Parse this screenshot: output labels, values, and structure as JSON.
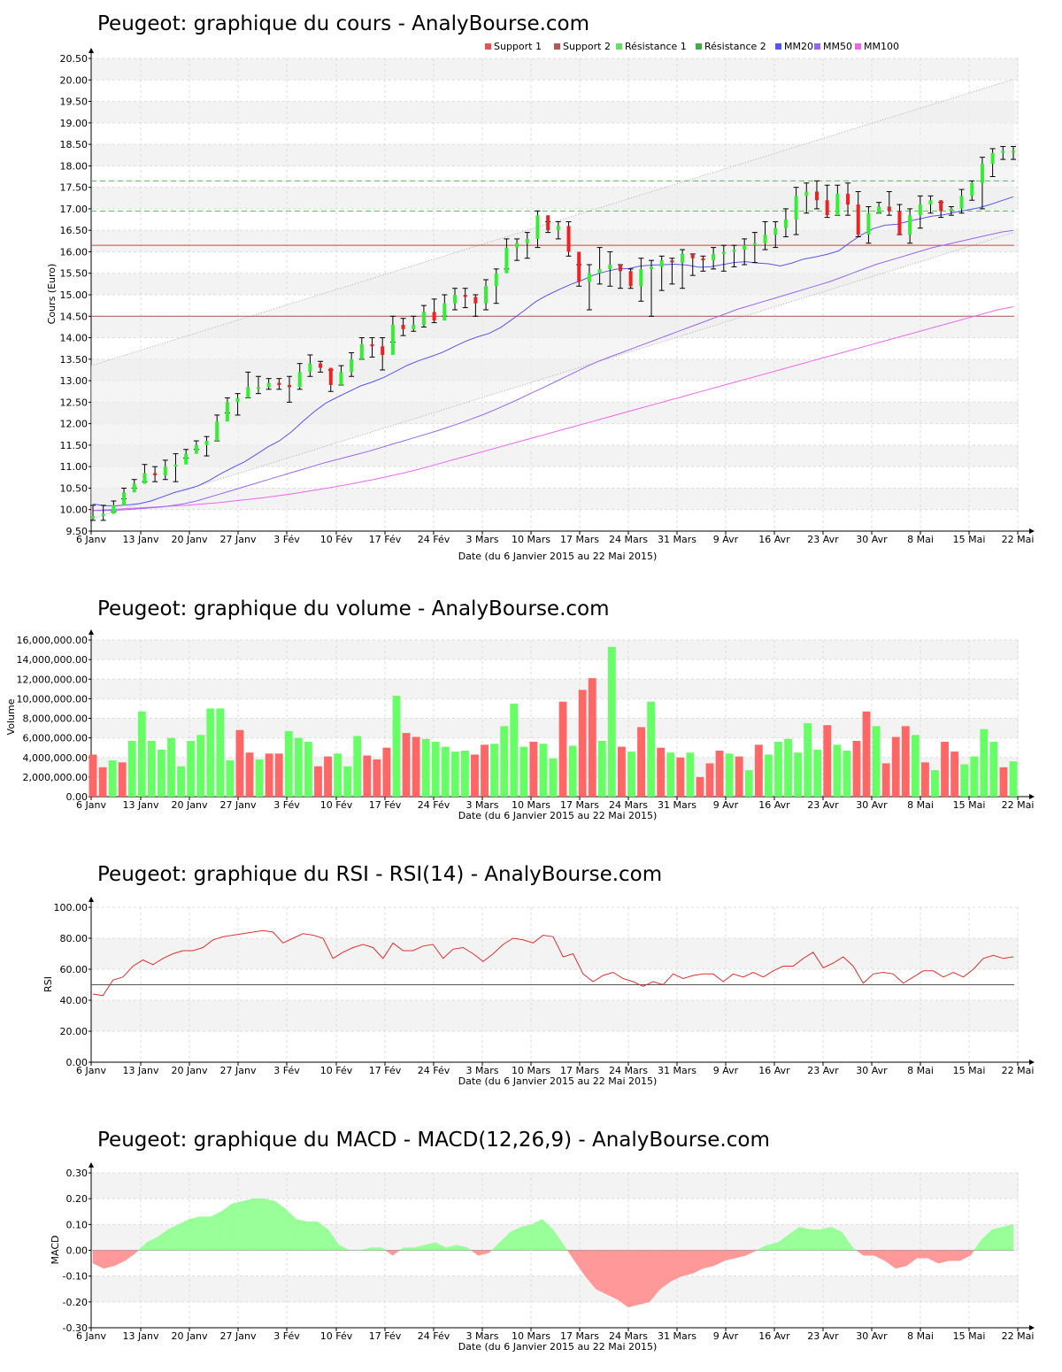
{
  "chart_data": [
    {
      "type": "candlestick",
      "title": "Peugeot: graphique du cours - AnalyBourse.com",
      "xlabel": "Date (du 6 Janvier 2015 au 22 Mai 2015)",
      "ylabel": "Cours (Euro)",
      "ylim": [
        9.5,
        20.5
      ],
      "yticks": [
        "9.50",
        "10.00",
        "10.50",
        "11.00",
        "11.50",
        "12.00",
        "12.50",
        "13.00",
        "13.50",
        "14.00",
        "14.50",
        "15.00",
        "15.50",
        "16.00",
        "16.50",
        "17.00",
        "17.50",
        "18.00",
        "18.50",
        "19.00",
        "19.50",
        "20.00",
        "20.50"
      ],
      "xticks": [
        "6 Janv",
        "13 Janv",
        "20 Janv",
        "27 Janv",
        "3 Fév",
        "10 Fév",
        "17 Fév",
        "24 Fév",
        "3 Mars",
        "10 Mars",
        "17 Mars",
        "24 Mars",
        "31 Mars",
        "9 Avr",
        "16 Avr",
        "23 Avr",
        "30 Avr",
        "8 Mai",
        "15 Mai",
        "22 Mai"
      ],
      "legend": [
        {
          "name": "Support 1",
          "color": "#e05555"
        },
        {
          "name": "Support 2",
          "color": "#b05a5a"
        },
        {
          "name": "Résistance 1",
          "color": "#66dd66"
        },
        {
          "name": "Résistance 2",
          "color": "#44aa44"
        },
        {
          "name": "MM20",
          "color": "#5555ee"
        },
        {
          "name": "MM50",
          "color": "#9966ee"
        },
        {
          "name": "MM100",
          "color": "#ee66ee"
        }
      ],
      "levels": {
        "support1": 16.15,
        "support2": 14.5,
        "resistance1": 16.95,
        "resistance2": 17.65
      },
      "close": [
        9.85,
        9.9,
        10.1,
        10.4,
        10.6,
        10.85,
        10.8,
        11.0,
        11.05,
        11.3,
        11.5,
        11.6,
        12.05,
        12.5,
        12.6,
        12.85,
        12.85,
        12.95,
        12.9,
        12.85,
        13.2,
        13.4,
        13.3,
        12.9,
        13.2,
        13.5,
        13.85,
        13.8,
        13.6,
        14.3,
        14.2,
        14.3,
        14.6,
        14.4,
        14.8,
        15.0,
        14.95,
        14.8,
        15.2,
        15.5,
        16.1,
        16.2,
        16.3,
        16.85,
        16.5,
        16.6,
        16.0,
        15.3,
        15.5,
        15.6,
        15.7,
        15.55,
        15.2,
        15.6,
        15.65,
        15.8,
        15.75,
        15.95,
        15.85,
        15.8,
        15.95,
        16.0,
        16.05,
        16.15,
        16.2,
        16.4,
        16.55,
        16.75,
        17.3,
        17.4,
        17.2,
        16.85,
        17.35,
        17.1,
        16.4,
        16.9,
        17.05,
        16.95,
        16.4,
        16.85,
        17.1,
        17.2,
        16.95,
        17.0,
        17.3,
        17.6,
        18.05,
        18.3,
        18.35,
        18.35
      ],
      "high": [
        10.1,
        10.1,
        10.2,
        10.5,
        10.7,
        11.05,
        11.0,
        11.15,
        11.3,
        11.4,
        11.6,
        11.7,
        12.2,
        12.6,
        12.7,
        13.2,
        13.1,
        13.05,
        13.05,
        13.1,
        13.4,
        13.6,
        13.45,
        13.25,
        13.35,
        13.65,
        14.0,
        14.0,
        14.0,
        14.5,
        14.45,
        14.5,
        14.75,
        14.9,
        15.0,
        15.15,
        15.15,
        15.0,
        15.35,
        15.6,
        16.3,
        16.3,
        16.45,
        16.95,
        16.7,
        16.7,
        16.7,
        15.7,
        15.7,
        16.1,
        16.0,
        15.7,
        15.6,
        15.85,
        15.8,
        15.9,
        15.85,
        16.05,
        15.95,
        15.9,
        16.1,
        16.15,
        16.15,
        16.3,
        16.45,
        16.7,
        16.7,
        17.0,
        17.5,
        17.6,
        17.65,
        17.55,
        17.55,
        17.6,
        17.4,
        17.05,
        17.15,
        17.4,
        17.1,
        17.0,
        17.3,
        17.3,
        17.15,
        17.05,
        17.45,
        17.65,
        18.2,
        18.4,
        18.45,
        18.45
      ],
      "low": [
        9.75,
        9.75,
        9.95,
        10.25,
        10.5,
        10.65,
        10.65,
        10.7,
        10.65,
        11.2,
        11.4,
        11.25,
        11.6,
        12.25,
        12.2,
        12.6,
        12.7,
        12.8,
        12.8,
        12.5,
        12.8,
        13.1,
        13.2,
        12.75,
        12.9,
        13.1,
        13.5,
        13.55,
        13.25,
        13.9,
        14.05,
        14.15,
        14.25,
        14.35,
        14.5,
        14.65,
        14.7,
        14.5,
        14.65,
        14.8,
        15.6,
        15.8,
        15.85,
        16.1,
        16.45,
        16.3,
        15.9,
        15.2,
        14.65,
        15.25,
        15.2,
        15.15,
        15.15,
        14.85,
        14.5,
        15.1,
        15.25,
        15.15,
        15.45,
        15.55,
        15.6,
        15.55,
        15.65,
        15.7,
        15.75,
        16.05,
        16.1,
        16.35,
        16.4,
        16.9,
        17.0,
        16.8,
        16.85,
        16.85,
        16.35,
        16.2,
        16.9,
        16.85,
        16.4,
        16.2,
        16.55,
        16.9,
        16.8,
        16.85,
        16.9,
        17.2,
        17.0,
        17.75,
        18.15,
        18.15
      ],
      "ma20": [
        10.13,
        10.09,
        10.09,
        10.11,
        10.14,
        10.2,
        10.3,
        10.4,
        10.47,
        10.55,
        10.68,
        10.84,
        10.98,
        11.11,
        11.28,
        11.46,
        11.6,
        11.8,
        12.05,
        12.28,
        12.48,
        12.62,
        12.75,
        12.88,
        12.97,
        13.08,
        13.22,
        13.36,
        13.47,
        13.56,
        13.66,
        13.79,
        13.92,
        14.02,
        14.1,
        14.24,
        14.43,
        14.63,
        14.84,
        14.99,
        15.12,
        15.24,
        15.34,
        15.46,
        15.54,
        15.6,
        15.61,
        15.67,
        15.69,
        15.7,
        15.71,
        15.69,
        15.64,
        15.65,
        15.7,
        15.75,
        15.77,
        15.74,
        15.72,
        15.67,
        15.74,
        15.83,
        15.88,
        15.94,
        16.02,
        16.22,
        16.4,
        16.54,
        16.62,
        16.64,
        16.71,
        16.77,
        16.83,
        16.86,
        16.92,
        16.97,
        17.02,
        17.1,
        17.19,
        17.28
      ],
      "ma50": [
        9.98,
        9.98,
        9.99,
        10.0,
        10.02,
        10.04,
        10.06,
        10.1,
        10.14,
        10.2,
        10.28,
        10.36,
        10.44,
        10.52,
        10.6,
        10.68,
        10.76,
        10.84,
        10.92,
        11.0,
        11.08,
        11.15,
        11.22,
        11.29,
        11.36,
        11.44,
        11.52,
        11.6,
        11.68,
        11.76,
        11.84,
        11.93,
        12.02,
        12.12,
        12.22,
        12.33,
        12.45,
        12.57,
        12.7,
        12.82,
        12.95,
        13.08,
        13.21,
        13.34,
        13.46,
        13.56,
        13.66,
        13.76,
        13.86,
        13.96,
        14.06,
        14.16,
        14.26,
        14.36,
        14.46,
        14.56,
        14.66,
        14.74,
        14.82,
        14.9,
        14.98,
        15.06,
        15.14,
        15.22,
        15.3,
        15.4,
        15.5,
        15.6,
        15.7,
        15.78,
        15.86,
        15.94,
        16.02,
        16.1,
        16.16,
        16.22,
        16.28,
        16.34,
        16.4,
        16.46,
        16.5
      ],
      "ma100": [
        9.98,
        10.0,
        10.02,
        10.04,
        10.06,
        10.08,
        10.1,
        10.13,
        10.16,
        10.2,
        10.24,
        10.28,
        10.33,
        10.38,
        10.44,
        10.5,
        10.56,
        10.63,
        10.7,
        10.78,
        10.86,
        10.95,
        11.05,
        11.15,
        11.25,
        11.35,
        11.45,
        11.55,
        11.65,
        11.75,
        11.85,
        11.95,
        12.05,
        12.15,
        12.25,
        12.35,
        12.45,
        12.55,
        12.65,
        12.75,
        12.85,
        12.95,
        13.05,
        13.15,
        13.25,
        13.35,
        13.45,
        13.55,
        13.65,
        13.75,
        13.85,
        13.95,
        14.05,
        14.15,
        14.25,
        14.35,
        14.45,
        14.55,
        14.65,
        14.72
      ]
    },
    {
      "type": "bar",
      "title": "Peugeot: graphique du volume - AnalyBourse.com",
      "xlabel": "Date (du 6 Janvier 2015 au 22 Mai 2015)",
      "ylabel": "Volume",
      "ylim": [
        0,
        16000000
      ],
      "yticks": [
        "0.00",
        "2,000,000.00",
        "4,000,000.00",
        "6,000,000.00",
        "8,000,000.00",
        "10,000,000.00",
        "12,000,000.00",
        "14,000,000.00",
        "16,000,000.00"
      ],
      "xticks": [
        "6 Janv",
        "13 Janv",
        "20 Janv",
        "27 Janv",
        "3 Fév",
        "10 Fév",
        "17 Fév",
        "24 Fév",
        "3 Mars",
        "10 Mars",
        "17 Mars",
        "24 Mars",
        "31 Mars",
        "9 Avr",
        "16 Avr",
        "23 Avr",
        "30 Avr",
        "8 Mai",
        "15 Mai",
        "22 Mai"
      ],
      "values": [
        4300000,
        3000000,
        3700000,
        3500000,
        5700000,
        8700000,
        5700000,
        4800000,
        6000000,
        3100000,
        5700000,
        6300000,
        9000000,
        9000000,
        3700000,
        6800000,
        4500000,
        3800000,
        4400000,
        4400000,
        6700000,
        6000000,
        5600000,
        3100000,
        4100000,
        4400000,
        3100000,
        6200000,
        4200000,
        3800000,
        5000000,
        10300000,
        6500000,
        6100000,
        5900000,
        5600000,
        5100000,
        4600000,
        4700000,
        4300000,
        5300000,
        5400000,
        7200000,
        9500000,
        5100000,
        5600000,
        5400000,
        3900000,
        9700000,
        5200000,
        10900000,
        12100000,
        5700000,
        15300000,
        5100000,
        4600000,
        7100000,
        9700000,
        5000000,
        4500000,
        4000000,
        4500000,
        2000000,
        3400000,
        4700000,
        4400000,
        4100000,
        2700000,
        5300000,
        4300000,
        5600000,
        5900000,
        4500000,
        7500000,
        4800000,
        7300000,
        5300000,
        4700000,
        5700000,
        8700000,
        7200000,
        3400000,
        6100000,
        7200000,
        6300000,
        3500000,
        2700000,
        5600000,
        4600000,
        3300000,
        4100000,
        6900000,
        5600000,
        3000000,
        3600000
      ],
      "colors": [
        "r",
        "r",
        "g",
        "r",
        "g",
        "g",
        "g",
        "g",
        "g",
        "g",
        "g",
        "g",
        "g",
        "g",
        "g",
        "r",
        "r",
        "g",
        "r",
        "r",
        "g",
        "g",
        "g",
        "r",
        "r",
        "g",
        "g",
        "g",
        "r",
        "r",
        "r",
        "g",
        "r",
        "r",
        "g",
        "g",
        "g",
        "g",
        "g",
        "r",
        "r",
        "g",
        "g",
        "g",
        "g",
        "r",
        "g",
        "g",
        "r",
        "g",
        "r",
        "r",
        "g",
        "g",
        "r",
        "g",
        "r",
        "g",
        "r",
        "g",
        "r",
        "g",
        "r",
        "r",
        "r",
        "g",
        "r",
        "g",
        "r",
        "g",
        "g",
        "g",
        "g",
        "g",
        "g",
        "r",
        "g",
        "g",
        "r",
        "r",
        "g",
        "r",
        "r",
        "r",
        "g",
        "r",
        "g",
        "r",
        "r",
        "g",
        "g",
        "g",
        "g",
        "r",
        "g"
      ]
    },
    {
      "type": "line",
      "title": "Peugeot: graphique du RSI - RSI(14) - AnalyBourse.com",
      "xlabel": "Date (du 6 Janvier 2015 au 22 Mai 2015)",
      "ylabel": "RSI",
      "ylim": [
        0,
        100
      ],
      "yticks": [
        "0.00",
        "20.00",
        "40.00",
        "60.00",
        "80.00",
        "100.00"
      ],
      "xticks": [
        "6 Janv",
        "13 Janv",
        "20 Janv",
        "27 Janv",
        "3 Fév",
        "10 Fév",
        "17 Fév",
        "24 Fév",
        "3 Mars",
        "10 Mars",
        "17 Mars",
        "24 Mars",
        "31 Mars",
        "9 Avr",
        "16 Avr",
        "23 Avr",
        "30 Avr",
        "8 Mai",
        "15 Mai",
        "22 Mai"
      ],
      "reference": 50,
      "values": [
        44,
        43,
        53,
        55,
        62,
        66,
        63,
        67,
        70,
        72,
        72,
        74,
        79,
        81,
        82,
        83,
        84,
        85,
        84,
        77,
        80,
        83,
        82,
        80,
        67,
        71,
        74,
        76,
        74,
        67,
        77,
        72,
        72,
        75,
        76,
        67,
        73,
        74,
        70,
        65,
        70,
        76,
        80,
        79,
        77,
        82,
        81,
        68,
        70,
        57,
        52,
        56,
        58,
        54,
        52,
        49,
        52,
        50,
        57,
        54,
        56,
        57,
        57,
        52,
        57,
        55,
        58,
        55,
        59,
        62,
        62,
        67,
        71,
        61,
        64,
        68,
        62,
        51,
        57,
        58,
        57,
        51,
        55,
        59,
        59,
        55,
        58,
        55,
        60,
        67,
        69,
        67,
        68
      ],
      "color": "#e03030"
    },
    {
      "type": "area",
      "title": "Peugeot: graphique du MACD - MACD(12,26,9) - AnalyBourse.com",
      "xlabel": "Date (du 6 Janvier 2015 au 22 Mai 2015)",
      "ylabel": "MACD",
      "ylim": [
        -0.3,
        0.3
      ],
      "yticks": [
        "-0.30",
        "-0.20",
        "-0.10",
        "0.00",
        "0.10",
        "0.20",
        "0.30"
      ],
      "xticks": [
        "6 Janv",
        "13 Janv",
        "20 Janv",
        "27 Janv",
        "3 Fév",
        "10 Fév",
        "17 Fév",
        "24 Fév",
        "3 Mars",
        "10 Mars",
        "17 Mars",
        "24 Mars",
        "31 Mars",
        "9 Avr",
        "16 Avr",
        "23 Avr",
        "30 Avr",
        "8 Mai",
        "15 Mai",
        "22 Mai"
      ],
      "values": [
        -0.05,
        -0.07,
        -0.06,
        -0.04,
        -0.01,
        0.03,
        0.05,
        0.08,
        0.1,
        0.12,
        0.13,
        0.13,
        0.15,
        0.18,
        0.19,
        0.2,
        0.2,
        0.19,
        0.16,
        0.12,
        0.11,
        0.11,
        0.08,
        0.02,
        0.0,
        0.0,
        0.01,
        0.01,
        -0.02,
        0.01,
        0.01,
        0.02,
        0.03,
        0.01,
        0.02,
        0.01,
        -0.02,
        -0.01,
        0.03,
        0.07,
        0.09,
        0.1,
        0.12,
        0.08,
        0.02,
        -0.04,
        -0.1,
        -0.15,
        -0.17,
        -0.19,
        -0.22,
        -0.21,
        -0.2,
        -0.15,
        -0.12,
        -0.1,
        -0.09,
        -0.07,
        -0.06,
        -0.04,
        -0.03,
        -0.02,
        0.0,
        0.02,
        0.03,
        0.06,
        0.09,
        0.08,
        0.08,
        0.09,
        0.07,
        0.01,
        -0.02,
        -0.02,
        -0.04,
        -0.07,
        -0.06,
        -0.03,
        -0.03,
        -0.05,
        -0.04,
        -0.04,
        -0.02,
        0.04,
        0.08,
        0.09,
        0.1
      ],
      "pos_color": "#99ff99",
      "neg_color": "#ff9999"
    }
  ]
}
